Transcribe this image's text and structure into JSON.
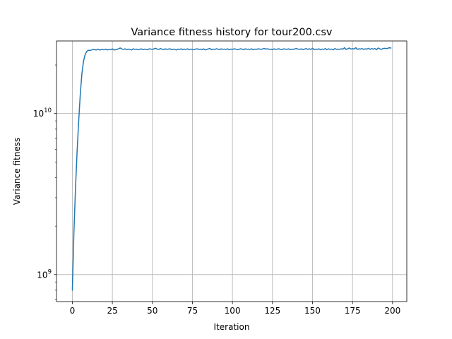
{
  "chart_data": {
    "type": "line",
    "title": "Variance fitness history for tour200.csv",
    "xlabel": "Iteration",
    "ylabel": "Variance fitness",
    "yscale": "log",
    "xlim": [
      -9.9,
      208.9
    ],
    "ylim": [
      680000000,
      28200000000
    ],
    "grid": true,
    "x_ticks": [
      0,
      25,
      50,
      75,
      100,
      125,
      150,
      175,
      200
    ],
    "x_tick_labels": [
      "0",
      "25",
      "50",
      "75",
      "100",
      "125",
      "150",
      "175",
      "200"
    ],
    "y_ticks": [
      1000000000,
      10000000000
    ],
    "y_tick_labels": [
      {
        "base": "10",
        "exp": "9"
      },
      {
        "base": "10",
        "exp": "10"
      }
    ],
    "line_color": "#1f77b4",
    "series": [
      {
        "values": [
          800000000,
          1850000000,
          3500000000,
          5900000000,
          9100000000,
          13400000000,
          17800000000,
          21200000000,
          23200000000,
          24300000000,
          24700000000,
          24600000000,
          24800000000,
          25000000000,
          24900000000,
          24800000000,
          25100000000,
          24800000000,
          24900000000,
          25000000000,
          24900000000,
          25100000000,
          24800000000,
          25000000000,
          24900000000,
          25200000000,
          24800000000,
          24900000000,
          25000000000,
          25300000000,
          25500000000,
          25100000000,
          25000000000,
          25200000000,
          24900000000,
          25100000000,
          25000000000,
          24800000000,
          25200000000,
          25000000000,
          25100000000,
          24900000000,
          25000000000,
          25200000000,
          24900000000,
          25100000000,
          25000000000,
          24900000000,
          25200000000,
          25100000000,
          25000000000,
          25200000000,
          25400000000,
          25100000000,
          25000000000,
          25300000000,
          25100000000,
          24900000000,
          25200000000,
          25000000000,
          25100000000,
          25200000000,
          24900000000,
          25100000000,
          25000000000,
          24800000000,
          25100000000,
          25000000000,
          25200000000,
          24900000000,
          25100000000,
          25000000000,
          25200000000,
          24900000000,
          25100000000,
          25000000000,
          24900000000,
          25100000000,
          25200000000,
          25000000000,
          25100000000,
          24900000000,
          25200000000,
          24800000000,
          25000000000,
          25200000000,
          25300000000,
          24900000000,
          25100000000,
          25000000000,
          25200000000,
          25100000000,
          24900000000,
          25200000000,
          25000000000,
          25100000000,
          25000000000,
          25200000000,
          24900000000,
          25100000000,
          25000000000,
          25200000000,
          25100000000,
          24900000000,
          25000000000,
          25200000000,
          25100000000,
          24900000000,
          25200000000,
          25000000000,
          25100000000,
          25000000000,
          25200000000,
          24900000000,
          25100000000,
          25000000000,
          25200000000,
          25100000000,
          25000000000,
          25200000000,
          25300000000,
          25100000000,
          25200000000,
          25000000000,
          25100000000,
          24900000000,
          25200000000,
          25000000000,
          25100000000,
          25200000000,
          25000000000,
          24900000000,
          25200000000,
          25100000000,
          25000000000,
          25200000000,
          24900000000,
          25100000000,
          25000000000,
          25200000000,
          25300000000,
          25100000000,
          25000000000,
          25200000000,
          24900000000,
          25100000000,
          25300000000,
          25000000000,
          25200000000,
          25000000000,
          25400000000,
          24900000000,
          25100000000,
          25000000000,
          25200000000,
          24900000000,
          25100000000,
          25000000000,
          25300000000,
          24900000000,
          25200000000,
          25000000000,
          25100000000,
          24900000000,
          25300000000,
          25000000000,
          25100000000,
          25000000000,
          25200000000,
          25100000000,
          25600000000,
          25000000000,
          25200000000,
          25500000000,
          25100000000,
          25300000000,
          25100000000,
          25600000000,
          25000000000,
          25200000000,
          25100000000,
          25300000000,
          25000000000,
          25200000000,
          25100000000,
          25400000000,
          25000000000,
          25300000000,
          25100000000,
          25300000000,
          24900000000,
          25500000000,
          25200000000,
          25000000000,
          25300000000,
          25400000000,
          25300000000,
          25400000000,
          25600000000,
          25500000000
        ]
      }
    ]
  }
}
